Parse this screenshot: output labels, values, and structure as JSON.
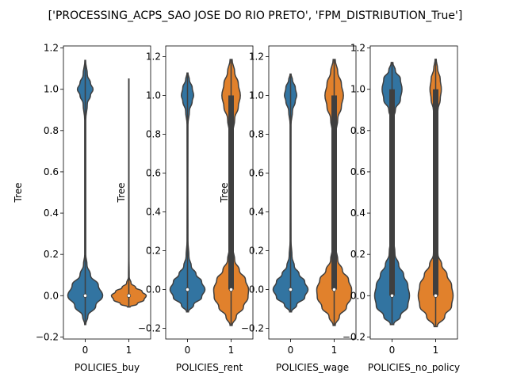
{
  "title": "['PROCESSING_ACPS_SAO JOSE DO RIO PRETO', 'FPM_DISTRIBUTION_True']",
  "colors": {
    "c0": "#3274a1",
    "c1": "#e1812c",
    "edge": "#3f3f3f",
    "box": "#3f3f3f"
  },
  "chart_data": [
    {
      "type": "violin",
      "xlabel": "POLICIES_buy",
      "ylabel": "Tree",
      "categories": [
        "0",
        "1"
      ],
      "ylim": [
        -0.21,
        1.21
      ],
      "yticks": [
        -0.2,
        0.0,
        0.2,
        0.4,
        0.6,
        0.8,
        1.0,
        1.2
      ],
      "ytick_labels": [
        "−0.2",
        "0.0",
        "0.2",
        "0.4",
        "0.6",
        "0.8",
        "1.0",
        "1.2"
      ],
      "violins": [
        {
          "category": "0",
          "min": -0.14,
          "max": 1.14,
          "median": 0.0,
          "q1": 0.0,
          "q3": 0.0,
          "profile": [
            [
              -0.14,
              0.003
            ],
            [
              -0.1,
              0.015
            ],
            [
              -0.05,
              0.06
            ],
            [
              0.0,
              0.1
            ],
            [
              0.05,
              0.075
            ],
            [
              0.1,
              0.03
            ],
            [
              0.15,
              0.01
            ],
            [
              0.2,
              0.003
            ],
            [
              0.5,
              0.003
            ],
            [
              0.85,
              0.003
            ],
            [
              0.93,
              0.012
            ],
            [
              0.97,
              0.03
            ],
            [
              1.0,
              0.045
            ],
            [
              1.03,
              0.03
            ],
            [
              1.07,
              0.012
            ],
            [
              1.14,
              0.002
            ]
          ]
        },
        {
          "category": "1",
          "min": -0.055,
          "max": 1.05,
          "median": 0.0,
          "q1": 0.0,
          "q3": 0.0,
          "profile": [
            [
              -0.055,
              0.03
            ],
            [
              -0.04,
              0.22
            ],
            [
              -0.02,
              0.4
            ],
            [
              0.0,
              0.46
            ],
            [
              0.02,
              0.35
            ],
            [
              0.04,
              0.18
            ],
            [
              0.06,
              0.06
            ],
            [
              0.09,
              0.01
            ],
            [
              0.2,
              0.004
            ],
            [
              1.05,
              0.004
            ]
          ]
        }
      ]
    },
    {
      "type": "violin",
      "xlabel": "POLICIES_rent",
      "ylabel": "Tree",
      "categories": [
        "0",
        "1"
      ],
      "ylim": [
        -0.255,
        1.255
      ],
      "yticks": [
        -0.2,
        0.0,
        0.2,
        0.4,
        0.6,
        0.8,
        1.0,
        1.2
      ],
      "ytick_labels": [
        "−0.2",
        "0.0",
        "0.2",
        "0.4",
        "0.6",
        "0.8",
        "1.0",
        "1.2"
      ],
      "violins": [
        {
          "category": "0",
          "min": -0.115,
          "max": 1.115,
          "median": 0.0,
          "q1": 0.0,
          "q3": 0.0,
          "profile": [
            [
              -0.115,
              0.02
            ],
            [
              -0.08,
              0.13
            ],
            [
              -0.04,
              0.3
            ],
            [
              0.0,
              0.37
            ],
            [
              0.04,
              0.3
            ],
            [
              0.08,
              0.18
            ],
            [
              0.12,
              0.08
            ],
            [
              0.17,
              0.03
            ],
            [
              0.25,
              0.01
            ],
            [
              0.5,
              0.008
            ],
            [
              0.85,
              0.01
            ],
            [
              0.92,
              0.04
            ],
            [
              0.97,
              0.1
            ],
            [
              1.0,
              0.13
            ],
            [
              1.04,
              0.1
            ],
            [
              1.08,
              0.04
            ],
            [
              1.115,
              0.01
            ]
          ]
        },
        {
          "category": "1",
          "min": -0.185,
          "max": 1.185,
          "median": 0.0,
          "q1": 0.0,
          "q3": 1.0,
          "profile": [
            [
              -0.185,
              0.02
            ],
            [
              -0.14,
              0.1
            ],
            [
              -0.09,
              0.24
            ],
            [
              -0.04,
              0.33
            ],
            [
              0.0,
              0.34
            ],
            [
              0.05,
              0.28
            ],
            [
              0.1,
              0.16
            ],
            [
              0.15,
              0.07
            ],
            [
              0.22,
              0.03
            ],
            [
              0.35,
              0.02
            ],
            [
              0.6,
              0.02
            ],
            [
              0.8,
              0.03
            ],
            [
              0.88,
              0.07
            ],
            [
              0.94,
              0.14
            ],
            [
              1.0,
              0.18
            ],
            [
              1.06,
              0.14
            ],
            [
              1.12,
              0.07
            ],
            [
              1.185,
              0.02
            ]
          ]
        }
      ]
    },
    {
      "type": "violin",
      "xlabel": "POLICIES_wage",
      "ylabel": "Tree",
      "categories": [
        "0",
        "1"
      ],
      "ylim": [
        -0.255,
        1.255
      ],
      "yticks": [
        -0.2,
        0.0,
        0.2,
        0.4,
        0.6,
        0.8,
        1.0,
        1.2
      ],
      "ytick_labels": [
        "−0.2",
        "0.0",
        "0.2",
        "0.4",
        "0.6",
        "0.8",
        "1.0",
        "1.2"
      ],
      "violins": [
        {
          "category": "0",
          "min": -0.115,
          "max": 1.11,
          "median": 0.0,
          "q1": 0.0,
          "q3": 0.0,
          "profile": [
            [
              -0.115,
              0.02
            ],
            [
              -0.08,
              0.13
            ],
            [
              -0.04,
              0.3
            ],
            [
              0.0,
              0.37
            ],
            [
              0.04,
              0.3
            ],
            [
              0.08,
              0.18
            ],
            [
              0.12,
              0.08
            ],
            [
              0.17,
              0.03
            ],
            [
              0.25,
              0.01
            ],
            [
              0.5,
              0.008
            ],
            [
              0.85,
              0.01
            ],
            [
              0.92,
              0.04
            ],
            [
              0.97,
              0.1
            ],
            [
              1.0,
              0.13
            ],
            [
              1.04,
              0.1
            ],
            [
              1.08,
              0.04
            ],
            [
              1.11,
              0.01
            ]
          ]
        },
        {
          "category": "1",
          "min": -0.185,
          "max": 1.185,
          "median": 0.0,
          "q1": 0.0,
          "q3": 1.0,
          "profile": [
            [
              -0.185,
              0.02
            ],
            [
              -0.14,
              0.1
            ],
            [
              -0.09,
              0.24
            ],
            [
              -0.04,
              0.33
            ],
            [
              0.0,
              0.34
            ],
            [
              0.05,
              0.28
            ],
            [
              0.1,
              0.16
            ],
            [
              0.15,
              0.07
            ],
            [
              0.22,
              0.03
            ],
            [
              0.35,
              0.02
            ],
            [
              0.6,
              0.02
            ],
            [
              0.8,
              0.03
            ],
            [
              0.88,
              0.07
            ],
            [
              0.94,
              0.14
            ],
            [
              1.0,
              0.18
            ],
            [
              1.06,
              0.14
            ],
            [
              1.12,
              0.07
            ],
            [
              1.185,
              0.02
            ]
          ]
        }
      ]
    },
    {
      "type": "violin",
      "xlabel": "POLICIES_no_policy",
      "ylabel": "",
      "categories": [
        "0",
        "1"
      ],
      "ylim": [
        -0.21,
        1.21
      ],
      "yticks": [
        -0.2,
        0.0,
        0.2,
        0.4,
        0.6,
        0.8,
        1.0,
        1.2
      ],
      "ytick_labels": [
        "−0.2",
        "0.0",
        "0.2",
        "0.4",
        "0.6",
        "0.8",
        "1.0",
        "1.2"
      ],
      "violins": [
        {
          "category": "0",
          "min": -0.14,
          "max": 1.13,
          "median": 0.0,
          "q1": 0.0,
          "q3": 1.0,
          "profile": [
            [
              -0.14,
              0.04
            ],
            [
              -0.1,
              0.2
            ],
            [
              -0.05,
              0.38
            ],
            [
              0.0,
              0.42
            ],
            [
              0.05,
              0.38
            ],
            [
              0.1,
              0.28
            ],
            [
              0.15,
              0.16
            ],
            [
              0.2,
              0.07
            ],
            [
              0.3,
              0.02
            ],
            [
              0.55,
              0.01
            ],
            [
              0.85,
              0.02
            ],
            [
              0.9,
              0.08
            ],
            [
              0.95,
              0.2
            ],
            [
              1.0,
              0.24
            ],
            [
              1.05,
              0.2
            ],
            [
              1.09,
              0.08
            ],
            [
              1.13,
              0.02
            ]
          ]
        },
        {
          "category": "1",
          "min": -0.15,
          "max": 1.145,
          "median": 0.0,
          "q1": 0.0,
          "q3": 1.0,
          "profile": [
            [
              -0.15,
              0.04
            ],
            [
              -0.1,
              0.24
            ],
            [
              -0.05,
              0.42
            ],
            [
              0.0,
              0.46
            ],
            [
              0.05,
              0.42
            ],
            [
              0.1,
              0.3
            ],
            [
              0.15,
              0.16
            ],
            [
              0.2,
              0.06
            ],
            [
              0.3,
              0.015
            ],
            [
              0.55,
              0.008
            ],
            [
              0.85,
              0.015
            ],
            [
              0.9,
              0.06
            ],
            [
              0.95,
              0.12
            ],
            [
              1.0,
              0.15
            ],
            [
              1.05,
              0.12
            ],
            [
              1.1,
              0.05
            ],
            [
              1.145,
              0.015
            ]
          ]
        }
      ]
    }
  ]
}
